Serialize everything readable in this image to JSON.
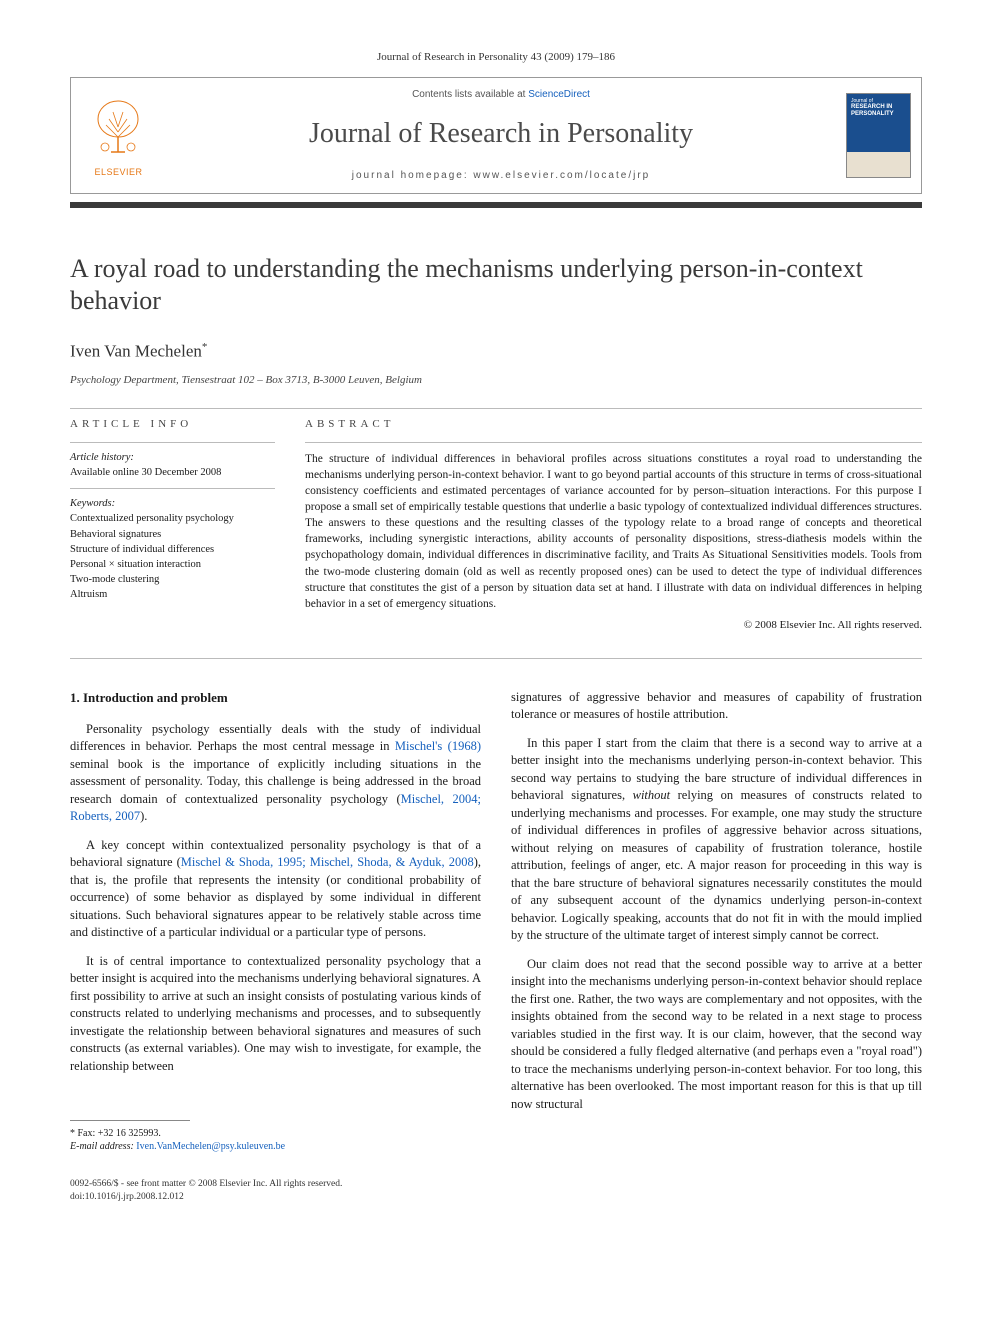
{
  "journal_ref": "Journal of Research in Personality 43 (2009) 179–186",
  "header": {
    "publisher_name": "ELSEVIER",
    "contents_prefix": "Contents lists available at ",
    "contents_link": "ScienceDirect",
    "journal_title": "Journal of Research in Personality",
    "homepage_prefix": "journal homepage: ",
    "homepage_url": "www.elsevier.com/locate/jrp",
    "cover_text_top": "Journal of",
    "cover_text_mid": "RESEARCH IN PERSONALITY"
  },
  "article": {
    "title": "A royal road to understanding the mechanisms underlying person-in-context behavior",
    "author": "Iven Van Mechelen",
    "author_mark": "*",
    "affiliation": "Psychology Department, Tiensestraat 102 – Box 3713, B-3000 Leuven, Belgium"
  },
  "info": {
    "heading": "article info",
    "history_label": "Article history:",
    "history_value": "Available online 30 December 2008",
    "keywords_label": "Keywords:",
    "keywords": [
      "Contextualized personality psychology",
      "Behavioral signatures",
      "Structure of individual differences",
      "Personal × situation interaction",
      "Two-mode clustering",
      "Altruism"
    ]
  },
  "abstract": {
    "heading": "abstract",
    "text": "The structure of individual differences in behavioral profiles across situations constitutes a royal road to understanding the mechanisms underlying person-in-context behavior. I want to go beyond partial accounts of this structure in terms of cross-situational consistency coefficients and estimated percentages of variance accounted for by person–situation interactions. For this purpose I propose a small set of empirically testable questions that underlie a basic typology of contextualized individual differences structures. The answers to these questions and the resulting classes of the typology relate to a broad range of concepts and theoretical frameworks, including synergistic interactions, ability accounts of personality dispositions, stress-diathesis models within the psychopathology domain, individual differences in discriminative facility, and Traits As Situational Sensitivities models. Tools from the two-mode clustering domain (old as well as recently proposed ones) can be used to detect the type of individual differences structure that constitutes the gist of a person by situation data set at hand. I illustrate with data on individual differences in helping behavior in a set of emergency situations.",
    "copyright": "© 2008 Elsevier Inc. All rights reserved."
  },
  "body": {
    "section_heading": "1. Introduction and problem",
    "left_paras": [
      "Personality psychology essentially deals with the study of individual differences in behavior. Perhaps the most central message in <span class=\"ref-link\">Mischel's (1968)</span> seminal book is the importance of explicitly including situations in the assessment of personality. Today, this challenge is being addressed in the broad research domain of contextualized personality psychology (<span class=\"ref-link\">Mischel, 2004; Roberts, 2007</span>).",
      "A key concept within contextualized personality psychology is that of a behavioral signature (<span class=\"ref-link\">Mischel & Shoda, 1995; Mischel, Shoda, & Ayduk, 2008</span>), that is, the profile that represents the intensity (or conditional probability of occurrence) of some behavior as displayed by some individual in different situations. Such behavioral signatures appear to be relatively stable across time and distinctive of a particular individual or a particular type of persons.",
      "It is of central importance to contextualized personality psychology that a better insight is acquired into the mechanisms underlying behavioral signatures. A first possibility to arrive at such an insight consists of postulating various kinds of constructs related to underlying mechanisms and processes, and to subsequently investigate the relationship between behavioral signatures and measures of such constructs (as external variables). One may wish to investigate, for example, the relationship between"
    ],
    "right_paras": [
      "signatures of aggressive behavior and measures of capability of frustration tolerance or measures of hostile attribution.",
      "In this paper I start from the claim that there is a second way to arrive at a better insight into the mechanisms underlying person-in-context behavior. This second way pertains to studying the bare structure of individual differences in behavioral signatures, <i>without</i> relying on measures of constructs related to underlying mechanisms and processes. For example, one may study the structure of individual differences in profiles of aggressive behavior across situations, without relying on measures of capability of frustration tolerance, hostile attribution, feelings of anger, etc. A major reason for proceeding in this way is that the bare structure of behavioral signatures necessarily constitutes the mould of any subsequent account of the dynamics underlying person-in-context behavior. Logically speaking, accounts that do not fit in with the mould implied by the structure of the ultimate target of interest simply cannot be correct.",
      "Our claim does not read that the second possible way to arrive at a better insight into the mechanisms underlying person-in-context behavior should replace the first one. Rather, the two ways are complementary and not opposites, with the insights obtained from the second way to be related in a next stage to process variables studied in the first way. It is our claim, however, that the second way should be considered a fully fledged alternative (and perhaps even a \"royal road\") to trace the mechanisms underlying person-in-context behavior. For too long, this alternative has been overlooked. The most important reason for this is that up till now structural"
    ]
  },
  "footnote": {
    "fax_label": "* Fax: +32 16 325993.",
    "email_label": "E-mail address:",
    "email": "Iven.VanMechelen@psy.kuleuven.be"
  },
  "footer": {
    "line1": "0092-6566/$ - see front matter © 2008 Elsevier Inc. All rights reserved.",
    "line2": "doi:10.1016/j.jrp.2008.12.012"
  },
  "colors": {
    "elsevier_orange": "#e67817",
    "link_blue": "#1560bd",
    "dark_bar": "#3a3a3a",
    "cover_blue": "#1a4e8e",
    "text": "#1a1a1a",
    "rule": "#bbbbbb"
  }
}
